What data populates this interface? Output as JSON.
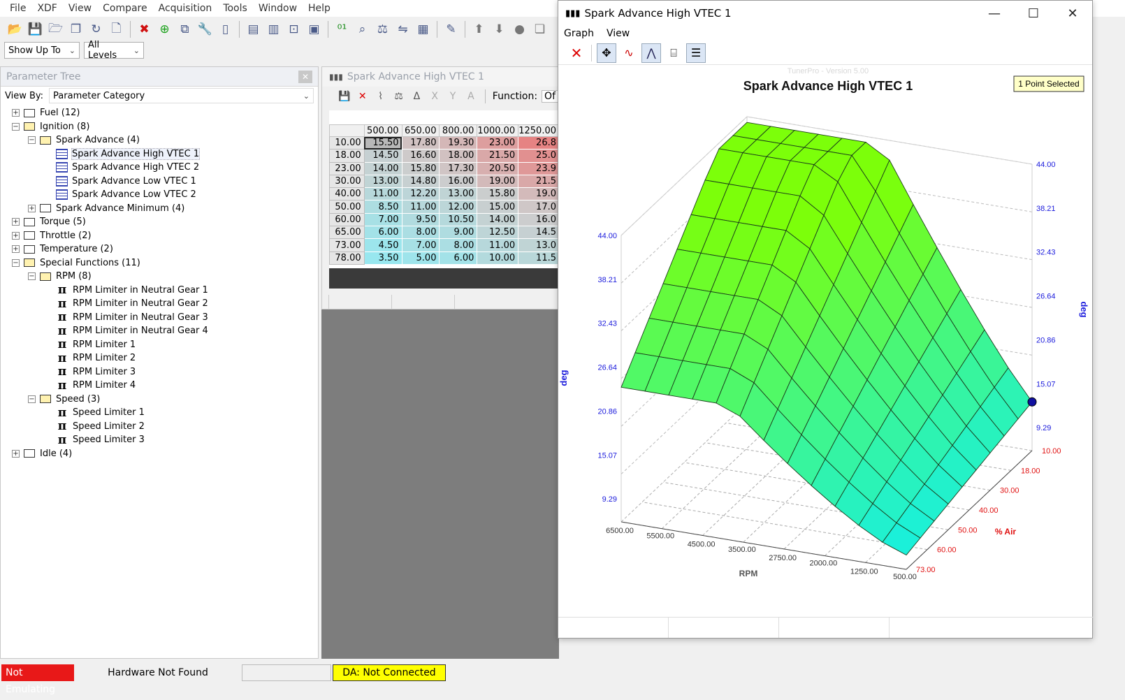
{
  "menu": [
    "File",
    "XDF",
    "View",
    "Compare",
    "Acquisition",
    "Tools",
    "Window",
    "Help"
  ],
  "toolbar_icons": [
    "open-icon",
    "save-icon",
    "open-folder-icon",
    "copy-icon",
    "refresh-icon",
    "new-file-icon",
    "delete-icon",
    "add-icon",
    "duplicate-icon",
    "wrench-icon",
    "blank-icon",
    "layout-1-icon",
    "layout-2-icon",
    "window-icon",
    "monitor-icon",
    "binary-icon",
    "search-icon",
    "compare-scale-icon",
    "compare-icon",
    "calculator-icon",
    "pen-icon",
    "arrow-up-icon",
    "arrow-down-icon",
    "circle-icon",
    "pages-icon"
  ],
  "filters": {
    "show_up_to": "Show Up To",
    "all_levels": "All Levels"
  },
  "parameter_tree": {
    "title": "Parameter Tree",
    "view_by_label": "View By:",
    "view_by_value": "Parameter Category",
    "rows": [
      {
        "text": "Fuel (12)",
        "depth": 0,
        "exp": "+",
        "icon": "folder"
      },
      {
        "text": "Ignition (8)",
        "depth": 0,
        "exp": "-",
        "icon": "folder-open"
      },
      {
        "text": "Spark Advance (4)",
        "depth": 1,
        "exp": "-",
        "icon": "folder-open"
      },
      {
        "text": "Spark Advance High VTEC 1",
        "depth": 2,
        "exp": "",
        "icon": "table",
        "selected": true
      },
      {
        "text": "Spark Advance High VTEC 2",
        "depth": 2,
        "exp": "",
        "icon": "table"
      },
      {
        "text": "Spark Advance Low VTEC 1",
        "depth": 2,
        "exp": "",
        "icon": "table"
      },
      {
        "text": "Spark Advance Low VTEC 2",
        "depth": 2,
        "exp": "",
        "icon": "table"
      },
      {
        "text": "Spark Advance Minimum (4)",
        "depth": 1,
        "exp": "+",
        "icon": "folder"
      },
      {
        "text": "Torque (5)",
        "depth": 0,
        "exp": "+",
        "icon": "folder"
      },
      {
        "text": "Throttle (2)",
        "depth": 0,
        "exp": "+",
        "icon": "folder"
      },
      {
        "text": "Temperature (2)",
        "depth": 0,
        "exp": "+",
        "icon": "folder"
      },
      {
        "text": "Special Functions (11)",
        "depth": 0,
        "exp": "-",
        "icon": "folder-open"
      },
      {
        "text": "RPM (8)",
        "depth": 1,
        "exp": "-",
        "icon": "folder-open"
      },
      {
        "text": "RPM Limiter in Neutral Gear 1",
        "depth": 2,
        "exp": "",
        "icon": "pi"
      },
      {
        "text": "RPM Limiter in Neutral Gear 2",
        "depth": 2,
        "exp": "",
        "icon": "pi"
      },
      {
        "text": "RPM Limiter in Neutral Gear 3",
        "depth": 2,
        "exp": "",
        "icon": "pi"
      },
      {
        "text": "RPM Limiter in Neutral Gear 4",
        "depth": 2,
        "exp": "",
        "icon": "pi"
      },
      {
        "text": "RPM Limiter 1",
        "depth": 2,
        "exp": "",
        "icon": "pi"
      },
      {
        "text": "RPM Limiter 2",
        "depth": 2,
        "exp": "",
        "icon": "pi"
      },
      {
        "text": "RPM Limiter 3",
        "depth": 2,
        "exp": "",
        "icon": "pi"
      },
      {
        "text": "RPM Limiter 4",
        "depth": 2,
        "exp": "",
        "icon": "pi"
      },
      {
        "text": "Speed (3)",
        "depth": 1,
        "exp": "-",
        "icon": "folder-open"
      },
      {
        "text": "Speed Limiter 1",
        "depth": 2,
        "exp": "",
        "icon": "pi"
      },
      {
        "text": "Speed Limiter 2",
        "depth": 2,
        "exp": "",
        "icon": "pi"
      },
      {
        "text": "Speed Limiter 3",
        "depth": 2,
        "exp": "",
        "icon": "pi"
      },
      {
        "text": "Idle (4)",
        "depth": 0,
        "exp": "+",
        "icon": "folder"
      }
    ]
  },
  "table_window": {
    "title": "Spark Advance High VTEC 1",
    "function_label": "Function:",
    "function_value": "Of",
    "col_headers": [
      "500.00",
      "650.00",
      "800.00",
      "1000.00",
      "1250.00"
    ],
    "rows": [
      {
        "h": "10.00",
        "v": [
          "15.50",
          "17.80",
          "19.30",
          "23.00",
          "26.8"
        ]
      },
      {
        "h": "18.00",
        "v": [
          "14.50",
          "16.60",
          "18.00",
          "21.50",
          "25.0"
        ]
      },
      {
        "h": "23.00",
        "v": [
          "14.00",
          "15.80",
          "17.30",
          "20.50",
          "23.9"
        ]
      },
      {
        "h": "30.00",
        "v": [
          "13.00",
          "14.80",
          "16.00",
          "19.00",
          "21.5"
        ]
      },
      {
        "h": "40.00",
        "v": [
          "11.00",
          "12.20",
          "13.00",
          "15.80",
          "19.0"
        ]
      },
      {
        "h": "50.00",
        "v": [
          "8.50",
          "11.00",
          "12.00",
          "15.00",
          "17.0"
        ]
      },
      {
        "h": "60.00",
        "v": [
          "7.00",
          "9.50",
          "10.50",
          "14.00",
          "16.0"
        ]
      },
      {
        "h": "65.00",
        "v": [
          "6.00",
          "8.00",
          "9.00",
          "12.50",
          "14.5"
        ]
      },
      {
        "h": "73.00",
        "v": [
          "4.50",
          "7.00",
          "8.00",
          "11.00",
          "13.0"
        ]
      },
      {
        "h": "78.00",
        "v": [
          "3.50",
          "5.00",
          "6.00",
          "10.00",
          "11.5"
        ]
      }
    ]
  },
  "graph_window": {
    "title": "Spark Advance High VTEC 1",
    "menu": [
      "Graph",
      "View"
    ],
    "watermark": "TunerPro - Version 5.00",
    "chart_title": "Spark Advance High VTEC 1",
    "badge": "1 Point Selected",
    "left_axis_label": "deg",
    "right_axis_label": "deg",
    "left_ticks": [
      "44.00",
      "38.21",
      "32.43",
      "26.64",
      "20.86",
      "15.07",
      "9.29"
    ],
    "right_ticks": [
      "44.00",
      "38.21",
      "32.43",
      "26.64",
      "20.86",
      "15.07",
      "9.29"
    ],
    "rpm_label": "RPM",
    "rpm_ticks": [
      "6500.00",
      "5500.00",
      "4500.00",
      "3500.00",
      "2750.00",
      "2000.00",
      "1250.00",
      "500.00"
    ],
    "air_label": "% Air",
    "air_ticks": [
      "10.00",
      "18.00",
      "30.00",
      "40.00",
      "50.00",
      "60.00",
      "73.00"
    ],
    "colors": {
      "top": "#7cff0a",
      "bottom": "#18f0e0",
      "axis_blue": "#1a1adc",
      "axis_red": "#e01010"
    }
  },
  "status": {
    "emulation": "Not Emulating",
    "hardware": "Hardware Not Found",
    "da": "DA: Not Connected"
  }
}
